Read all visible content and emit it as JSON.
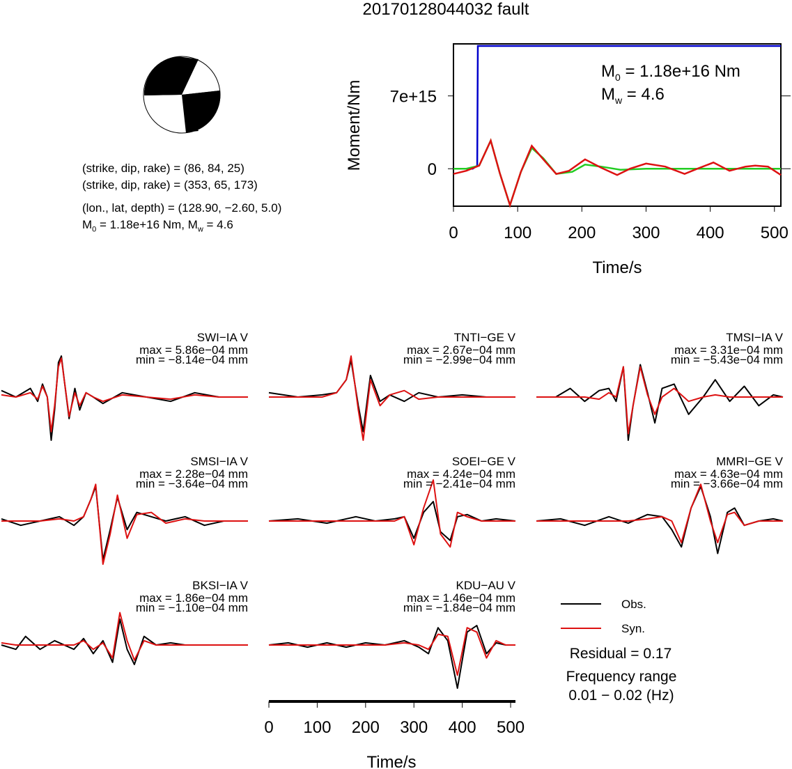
{
  "title": "20170128044032 fault",
  "fault_info": {
    "line1": "(strike, dip, rake) = (86, 84, 25)",
    "line2": "(strike, dip, rake) = (353, 65, 173)",
    "line3": "(lon., lat, depth) = (128.90, −2.60, 5.0)",
    "m0_label": "M",
    "m0_sub": "0",
    "m0_value": " = 1.18e+16 Nm, M",
    "mw_sub": "w",
    "mw_value": " = 4.6"
  },
  "colors": {
    "observed": "#000000",
    "synthetic": "#dd1111",
    "moment": "#0000cc",
    "stf": "#22cc22"
  },
  "chart_data": [
    {
      "type": "line",
      "xlabel": "Time/s",
      "ylabel": "Moment/Nm",
      "xlim": [
        0,
        510
      ],
      "ylim": [
        -3600000000000000.0,
        1.2e+16
      ],
      "xticks": [
        "0",
        "100",
        "200",
        "300",
        "400",
        "500"
      ],
      "yticks": [
        "0",
        "7e+15"
      ],
      "annotation_m0": "M",
      "annotation_m0_sub": "0",
      "annotation_m0_value": " = 1.18e+16 Nm",
      "annotation_mw": "M",
      "annotation_mw_sub": "w",
      "annotation_mw_value": " = 4.6",
      "series": [
        {
          "x": [
            0,
            30,
            37,
            37.5,
            38,
            510
          ],
          "y": [
            0,
            0,
            300000000000000.0,
            6500000000000000.0,
            1.18e+16,
            1.18e+16
          ]
        },
        {
          "x": [
            0,
            20,
            40,
            58,
            72,
            88,
            105,
            122,
            140,
            160,
            185,
            205,
            230,
            260,
            300,
            340,
            380,
            420,
            460,
            510
          ],
          "y": [
            0,
            0,
            300000000000000.0,
            2700000000000000.0,
            -400000000000000.0,
            -3500000000000000.0,
            -300000000000000.0,
            2000000000000000.0,
            1000000000000000.0,
            -500000000000000.0,
            -300000000000000.0,
            400000000000000.0,
            200000000000000.0,
            -100000000000000.0,
            0,
            0,
            0,
            0,
            0,
            0
          ]
        },
        {
          "x": [
            0,
            20,
            40,
            58,
            72,
            88,
            105,
            122,
            140,
            160,
            180,
            205,
            230,
            255,
            275,
            300,
            330,
            360,
            380,
            405,
            430,
            455,
            470,
            490,
            510
          ],
          "y": [
            -500000000000000.0,
            -200000000000000.0,
            300000000000000.0,
            2700000000000000.0,
            -400000000000000.0,
            -3500000000000000.0,
            -300000000000000.0,
            2200000000000000.0,
            900000000000000.0,
            -500000000000000.0,
            -200000000000000.0,
            900000000000000.0,
            100000000000000.0,
            -600000000000000.0,
            0,
            500000000000000.0,
            200000000000000.0,
            -500000000000000.0,
            0,
            600000000000000.0,
            -200000000000000.0,
            200000000000000.0,
            300000000000000.0,
            200000000000000.0,
            -600000000000000.0
          ]
        }
      ]
    },
    {
      "type": "line",
      "xlabel": "Time/s",
      "xlim": [
        0,
        510
      ],
      "xticks": [
        "0",
        "100",
        "200",
        "300",
        "400",
        "500"
      ],
      "legend": [
        "Obs.",
        "Syn."
      ],
      "residual": "Residual = 0.17",
      "frequency_label": "Frequency range",
      "frequency_value": "0.01 − 0.02 (Hz)",
      "stations": [
        {
          "name": "SWI−IA V",
          "max": "max = 5.86e−04 mm",
          "min": "min = −8.14e−04 mm",
          "t": [
            0,
            30,
            60,
            75,
            85,
            95,
            103,
            110,
            118,
            124,
            130,
            140,
            152,
            162,
            175,
            190,
            210,
            250,
            300,
            350,
            400,
            450,
            510
          ],
          "obs": [
            0.15,
            0.0,
            0.2,
            -0.1,
            0.3,
            0.0,
            -1.0,
            -0.3,
            0.8,
            0.95,
            0.4,
            -0.5,
            0.2,
            -0.3,
            0.1,
            0.0,
            -0.15,
            0.1,
            0.0,
            -0.1,
            0.1,
            0.0,
            0.0
          ],
          "syn": [
            0.05,
            0.0,
            0.1,
            -0.05,
            0.25,
            0.0,
            -0.8,
            -0.2,
            0.7,
            0.9,
            0.4,
            -0.45,
            0.1,
            -0.2,
            0.1,
            0.0,
            -0.1,
            0.05,
            0.0,
            -0.05,
            0.05,
            0.0,
            0.0
          ]
        },
        {
          "name": "TNTI−GE V",
          "max": "max = 2.67e−04 mm",
          "min": "min = −2.99e−04 mm",
          "t": [
            0,
            60,
            110,
            140,
            160,
            170,
            185,
            195,
            210,
            230,
            250,
            280,
            310,
            350,
            400,
            450,
            510
          ],
          "obs": [
            0.1,
            0.0,
            0.05,
            0.1,
            0.4,
            0.85,
            -0.2,
            -0.8,
            0.5,
            -0.1,
            0.05,
            -0.1,
            0.1,
            0.0,
            0.05,
            0.0,
            0.0
          ],
          "syn": [
            0.0,
            0.0,
            0.0,
            0.1,
            0.4,
            0.95,
            -0.3,
            -1.0,
            0.4,
            -0.2,
            0.05,
            0.15,
            -0.05,
            0.0,
            0.0,
            0.0,
            0.0
          ]
        },
        {
          "name": "TMSI−IA V",
          "max": "max = 3.31e−04 mm",
          "min": "min = −5.43e−04 mm",
          "t": [
            0,
            40,
            70,
            100,
            130,
            150,
            165,
            180,
            190,
            200,
            215,
            230,
            245,
            260,
            285,
            315,
            345,
            370,
            400,
            430,
            460,
            490,
            510
          ],
          "obs": [
            0.0,
            0.0,
            0.2,
            -0.1,
            0.15,
            0.2,
            -0.1,
            0.7,
            -1.0,
            -0.2,
            0.75,
            0.1,
            -0.6,
            0.2,
            0.3,
            -0.4,
            0.0,
            0.4,
            -0.1,
            0.25,
            -0.2,
            0.05,
            0.0
          ],
          "syn": [
            0.0,
            0.0,
            0.0,
            0.0,
            -0.05,
            0.1,
            0.0,
            0.7,
            -0.85,
            -0.2,
            0.7,
            0.05,
            -0.4,
            0.0,
            0.2,
            -0.1,
            0.0,
            0.05,
            0.0,
            0.0,
            0.0,
            0.0,
            0.0
          ]
        },
        {
          "name": "SMSI−IA V",
          "max": "max = 2.28e−04 mm",
          "min": "min = −3.64e−04 mm",
          "t": [
            0,
            40,
            80,
            120,
            150,
            170,
            185,
            195,
            210,
            225,
            240,
            260,
            280,
            310,
            340,
            380,
            420,
            460,
            510
          ],
          "obs": [
            0.05,
            -0.1,
            0.0,
            0.1,
            -0.1,
            0.1,
            0.5,
            0.8,
            -0.9,
            -0.2,
            0.55,
            -0.2,
            0.2,
            0.1,
            0.0,
            0.1,
            -0.1,
            0.0,
            0.0
          ],
          "syn": [
            0.0,
            0.0,
            0.0,
            0.05,
            0.0,
            0.1,
            0.5,
            0.85,
            -1.0,
            -0.3,
            0.6,
            -0.4,
            0.15,
            0.2,
            -0.05,
            0.05,
            0.0,
            0.0,
            0.0
          ]
        },
        {
          "name": "SOEI−GE V",
          "max": "max = 4.24e−04 mm",
          "min": "min = −2.41e−04 mm",
          "t": [
            0,
            60,
            120,
            180,
            220,
            260,
            280,
            300,
            320,
            340,
            355,
            375,
            390,
            410,
            440,
            470,
            510
          ],
          "obs": [
            0.0,
            0.05,
            -0.05,
            0.1,
            0.0,
            0.05,
            0.1,
            -0.4,
            0.2,
            0.45,
            -0.25,
            -0.45,
            0.1,
            0.15,
            0.0,
            0.05,
            0.0
          ],
          "syn": [
            0.0,
            0.0,
            0.0,
            0.0,
            0.0,
            0.0,
            0.1,
            -0.55,
            0.3,
            0.95,
            -0.3,
            -0.6,
            0.2,
            0.1,
            0.0,
            0.0,
            0.0
          ]
        },
        {
          "name": "MMRI−GE V",
          "max": "max = 4.63e−04 mm",
          "min": "min = −3.66e−04 mm",
          "t": [
            0,
            50,
            100,
            150,
            190,
            230,
            260,
            280,
            300,
            320,
            340,
            360,
            375,
            395,
            410,
            430,
            460,
            490,
            510
          ],
          "obs": [
            0.0,
            0.05,
            -0.1,
            0.1,
            -0.05,
            0.15,
            0.1,
            -0.2,
            -0.6,
            0.3,
            0.8,
            0.1,
            -0.75,
            0.2,
            0.3,
            -0.1,
            0.0,
            0.05,
            0.0
          ],
          "syn": [
            0.0,
            0.0,
            0.0,
            0.0,
            0.0,
            0.05,
            0.1,
            0.0,
            -0.5,
            0.3,
            0.85,
            0.0,
            -0.5,
            0.15,
            0.2,
            -0.1,
            0.0,
            0.0,
            0.0
          ]
        },
        {
          "name": "BKSI−IA V",
          "max": "max = 1.86e−04 mm",
          "min": "min = −1.10e−04 mm",
          "t": [
            0,
            30,
            50,
            80,
            110,
            150,
            170,
            190,
            210,
            230,
            245,
            260,
            275,
            295,
            320,
            350,
            380,
            420,
            460,
            510
          ],
          "obs": [
            0.0,
            -0.1,
            0.2,
            -0.1,
            0.1,
            -0.1,
            0.15,
            -0.2,
            0.1,
            -0.4,
            0.6,
            -0.1,
            -0.45,
            0.2,
            0.0,
            0.05,
            0.0,
            0.0,
            0.0,
            0.0
          ],
          "syn": [
            0.05,
            0.0,
            0.0,
            0.0,
            0.0,
            0.0,
            0.1,
            -0.1,
            0.05,
            -0.3,
            0.75,
            0.1,
            -0.35,
            0.1,
            0.0,
            0.0,
            0.0,
            0.0,
            0.0,
            0.0
          ]
        },
        {
          "name": "KDU−AU V",
          "max": "max = 1.46e−04 mm",
          "min": "min = −1.84e−04 mm",
          "t": [
            0,
            40,
            80,
            120,
            160,
            200,
            240,
            280,
            310,
            330,
            350,
            370,
            390,
            410,
            430,
            450,
            470,
            490,
            510
          ],
          "obs": [
            0.0,
            0.05,
            -0.05,
            0.05,
            -0.05,
            0.05,
            0.0,
            0.1,
            -0.05,
            -0.2,
            0.4,
            0.1,
            -1.0,
            0.3,
            0.45,
            -0.2,
            0.05,
            0.0,
            0.0
          ],
          "syn": [
            0.0,
            0.0,
            0.0,
            0.0,
            0.0,
            0.0,
            0.0,
            0.05,
            0.0,
            -0.1,
            0.25,
            0.2,
            -0.7,
            0.4,
            0.3,
            -0.3,
            0.1,
            0.0,
            0.0
          ]
        }
      ]
    }
  ]
}
